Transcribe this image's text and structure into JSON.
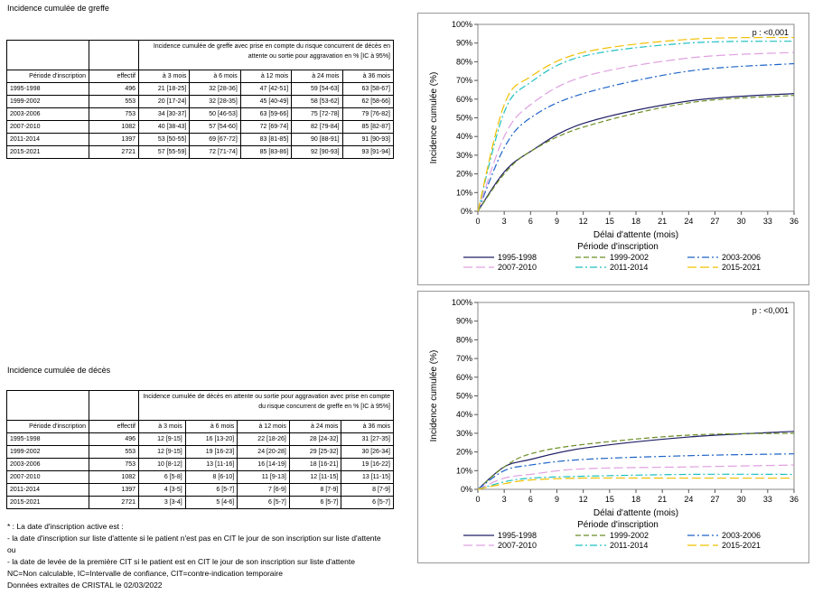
{
  "greffe": {
    "title": "Incidence cumulée de greffe",
    "table_header": "Incidence cumulée de greffe avec prise en compte du risque concurrent de décès en attente ou sortie pour aggravation en % [IC à 95%]",
    "col_periode": "Période d'inscription",
    "col_effectif": "effectif",
    "cols": [
      "à 3 mois",
      "à 6 mois",
      "à 12 mois",
      "à 24 mois",
      "à 36 mois"
    ],
    "rows": [
      {
        "periode": "1995-1998",
        "effectif": "496",
        "v": [
          "21 [18-25]",
          "32 [28-36]",
          "47 [42-51]",
          "59 [54-63]",
          "63 [58-67]"
        ]
      },
      {
        "periode": "1999-2002",
        "effectif": "553",
        "v": [
          "20 [17-24]",
          "32 [28-35]",
          "45 [40-49]",
          "58 [53-62]",
          "62 [58-66]"
        ]
      },
      {
        "periode": "2003-2006",
        "effectif": "753",
        "v": [
          "34 [30-37]",
          "50 [46-53]",
          "63 [59-66]",
          "75 [72-78]",
          "79 [76-82]"
        ]
      },
      {
        "periode": "2007-2010",
        "effectif": "1082",
        "v": [
          "40 [38-43]",
          "57 [54-60]",
          "72 [69-74]",
          "82 [79-84]",
          "85 [82-87]"
        ]
      },
      {
        "periode": "2011-2014",
        "effectif": "1397",
        "v": [
          "53 [50-55]",
          "69 [67-72]",
          "83 [81-85]",
          "90 [88-91]",
          "91 [90-93]"
        ]
      },
      {
        "periode": "2015-2021",
        "effectif": "2721",
        "v": [
          "57 [55-59]",
          "72 [71-74]",
          "85 [83-86]",
          "92 [90-93]",
          "93 [91-94]"
        ]
      }
    ]
  },
  "deces": {
    "title": "Incidence cumulée de décès",
    "table_header": "Incidence cumulée de décès en attente ou sortie pour aggravation avec prise en compte du risque concurrent de greffe en % [IC à 95%]",
    "col_periode": "Période d'inscription",
    "col_effectif": "effectif",
    "cols": [
      "à 3 mois",
      "à 6 mois",
      "à 12 mois",
      "à 24 mois",
      "à 36 mois"
    ],
    "rows": [
      {
        "periode": "1995-1998",
        "effectif": "496",
        "v": [
          "12 [9-15]",
          "16 [13-20]",
          "22 [18-26]",
          "28 [24-32]",
          "31 [27-35]"
        ]
      },
      {
        "periode": "1999-2002",
        "effectif": "553",
        "v": [
          "12 [9-15]",
          "19 [16-23]",
          "24 [20-28]",
          "29 [25-32]",
          "30 [26-34]"
        ]
      },
      {
        "periode": "2003-2006",
        "effectif": "753",
        "v": [
          "10 [8-12]",
          "13 [11-16]",
          "16 [14-19]",
          "18 [16-21]",
          "19 [16-22]"
        ]
      },
      {
        "periode": "2007-2010",
        "effectif": "1082",
        "v": [
          "6 [5-8]",
          "8 [6-10]",
          "11 [9-13]",
          "12 [11-15]",
          "13 [11-15]"
        ]
      },
      {
        "periode": "2011-2014",
        "effectif": "1397",
        "v": [
          "4 [3-5]",
          "6 [5-7]",
          "7 [6-9]",
          "8 [7-9]",
          "8 [7-9]"
        ]
      },
      {
        "periode": "2015-2021",
        "effectif": "2721",
        "v": [
          "3 [3-4]",
          "5 [4-6]",
          "6 [5-7]",
          "6 [5-7]",
          "6 [5-7]"
        ]
      }
    ]
  },
  "notes": [
    "* : La date d'inscription active est :",
    "- la date d'inscription sur liste d'attente si le patient n'est pas en CIT le jour de son inscription sur liste d'attente",
    "ou",
    "- la date de levée de la première CIT si le patient est en CIT le jour de son inscription sur liste d'attente",
    "NC=Non calculable, IC=Intervalle de confiance, CIT=contre-indication temporaire",
    "Données extraites de CRISTAL le 02/03/2022"
  ],
  "chart_data": [
    {
      "type": "line",
      "title": "",
      "annotation": "p : <0,001",
      "xlabel": "Délai d'attente (mois)",
      "ylabel": "Incidence cumulée (%)",
      "xlim": [
        0,
        36
      ],
      "ylim": [
        0,
        100
      ],
      "xticks": [
        0,
        3,
        6,
        9,
        12,
        15,
        18,
        21,
        24,
        27,
        30,
        33,
        36
      ],
      "yticks": [
        "0%",
        "10%",
        "20%",
        "30%",
        "40%",
        "50%",
        "60%",
        "70%",
        "80%",
        "90%",
        "100%"
      ],
      "legend_title": "Période d'inscription",
      "legend_placement": "bottom",
      "x": [
        0,
        3,
        6,
        12,
        24,
        36
      ],
      "series": [
        {
          "name": "1995-1998",
          "color": "#1f1f66",
          "dash": "",
          "values": [
            0,
            21,
            32,
            47,
            59,
            63
          ]
        },
        {
          "name": "1999-2002",
          "color": "#6b8e23",
          "dash": "6,3",
          "values": [
            0,
            20,
            32,
            45,
            58,
            62
          ]
        },
        {
          "name": "2003-2006",
          "color": "#1e64c8",
          "dash": "8,3,2,3",
          "values": [
            0,
            34,
            50,
            63,
            75,
            79
          ]
        },
        {
          "name": "2007-2010",
          "color": "#e0a0e0",
          "dash": "10,4",
          "values": [
            0,
            40,
            57,
            72,
            82,
            85
          ]
        },
        {
          "name": "2011-2014",
          "color": "#20c0c0",
          "dash": "8,3,2,3",
          "values": [
            0,
            53,
            69,
            83,
            90,
            91
          ]
        },
        {
          "name": "2015-2021",
          "color": "#f0c000",
          "dash": "10,4",
          "values": [
            0,
            57,
            72,
            85,
            92,
            93
          ]
        }
      ]
    },
    {
      "type": "line",
      "title": "",
      "annotation": "p : <0,001",
      "xlabel": "Délai d'attente (mois)",
      "ylabel": "Incidence cumulée (%)",
      "xlim": [
        0,
        36
      ],
      "ylim": [
        0,
        100
      ],
      "xticks": [
        0,
        3,
        6,
        9,
        12,
        15,
        18,
        21,
        24,
        27,
        30,
        33,
        36
      ],
      "yticks": [
        "0%",
        "10%",
        "20%",
        "30%",
        "40%",
        "50%",
        "60%",
        "70%",
        "80%",
        "90%",
        "100%"
      ],
      "legend_title": "Période d'inscription",
      "legend_placement": "bottom",
      "x": [
        0,
        3,
        6,
        12,
        24,
        36
      ],
      "series": [
        {
          "name": "1995-1998",
          "color": "#1f1f66",
          "dash": "",
          "values": [
            0,
            12,
            16,
            22,
            28,
            31
          ]
        },
        {
          "name": "1999-2002",
          "color": "#6b8e23",
          "dash": "6,3",
          "values": [
            0,
            12,
            19,
            24,
            29,
            30
          ]
        },
        {
          "name": "2003-2006",
          "color": "#1e64c8",
          "dash": "8,3,2,3",
          "values": [
            0,
            10,
            13,
            16,
            18,
            19
          ]
        },
        {
          "name": "2007-2010",
          "color": "#e0a0e0",
          "dash": "10,4",
          "values": [
            0,
            6,
            8,
            11,
            12,
            13
          ]
        },
        {
          "name": "2011-2014",
          "color": "#20c0c0",
          "dash": "8,3,2,3",
          "values": [
            0,
            4,
            6,
            7,
            8,
            8
          ]
        },
        {
          "name": "2015-2021",
          "color": "#f0c000",
          "dash": "10,4",
          "values": [
            0,
            3,
            5,
            6,
            6,
            6
          ]
        }
      ]
    }
  ]
}
